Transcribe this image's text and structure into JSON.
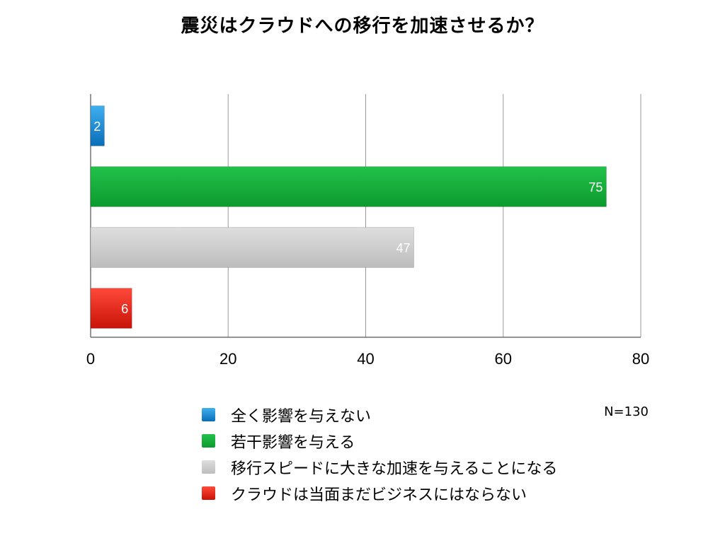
{
  "chart_data": {
    "type": "bar",
    "orientation": "horizontal",
    "title": "震災はクラウドへの移行を加速させるか？",
    "categories": [
      "全く影響を与えない",
      "若干影響を与える",
      "移行スピードに大きな加速を与えることになる",
      "クラウドは当面まだビジネスにはならない"
    ],
    "values": [
      2,
      75,
      47,
      6
    ],
    "colors": [
      "#1a8fd6",
      "#14b13a",
      "#cfcfcf",
      "#e8241a"
    ],
    "xlim": [
      0,
      80
    ],
    "xticks": [
      "0",
      "20",
      "40",
      "60",
      "80"
    ],
    "grid": true,
    "legend_position": "bottom",
    "note": "N=130"
  }
}
